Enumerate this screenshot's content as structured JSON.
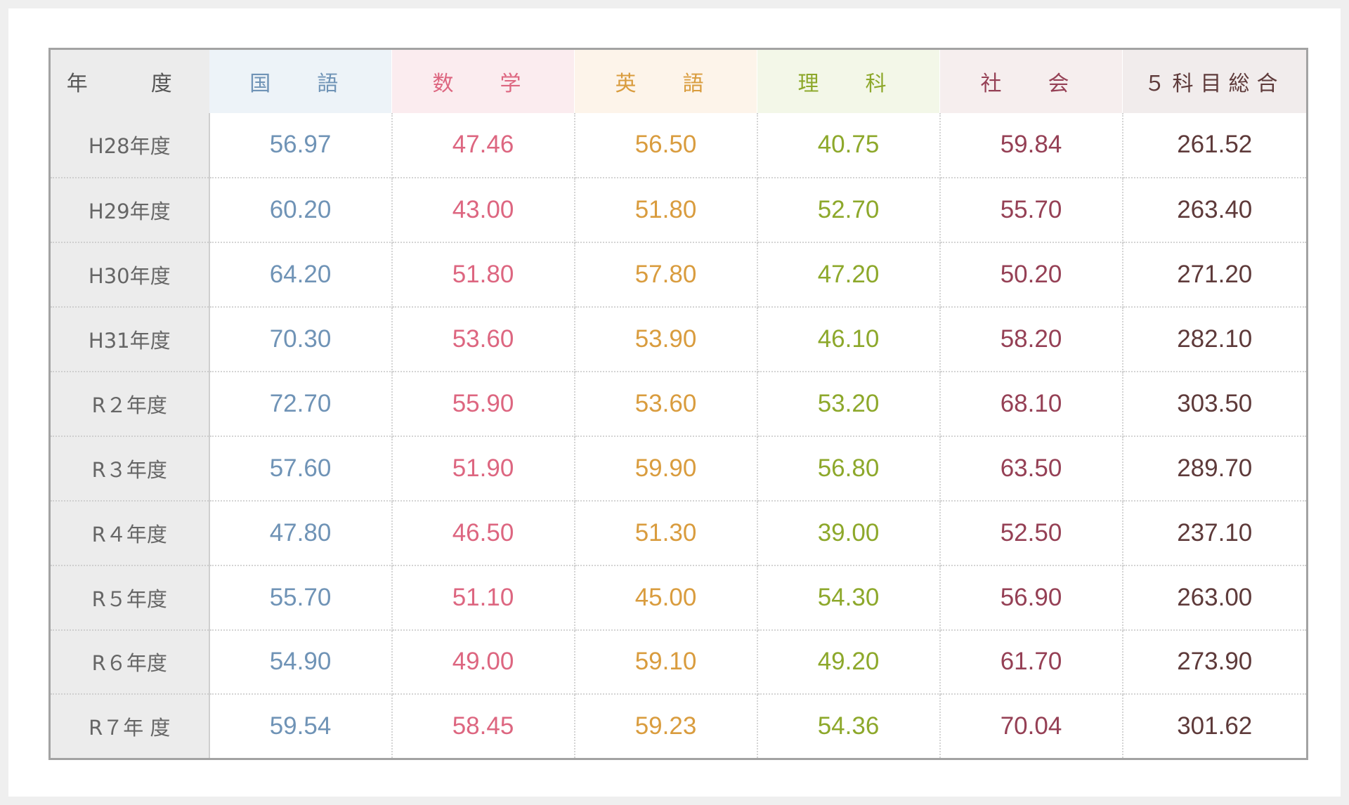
{
  "table": {
    "headers": {
      "year": "年　度",
      "kokugo": "国　語",
      "sugaku": "数　学",
      "eigo": "英　語",
      "rika": "理　科",
      "shakai": "社　会",
      "total": "５科目総合"
    },
    "rows": [
      {
        "year": "H28年度",
        "kokugo": "56.97",
        "sugaku": "47.46",
        "eigo": "56.50",
        "rika": "40.75",
        "shakai": "59.84",
        "total": "261.52"
      },
      {
        "year": "H29年度",
        "kokugo": "60.20",
        "sugaku": "43.00",
        "eigo": "51.80",
        "rika": "52.70",
        "shakai": "55.70",
        "total": "263.40"
      },
      {
        "year": "H30年度",
        "kokugo": "64.20",
        "sugaku": "51.80",
        "eigo": "57.80",
        "rika": "47.20",
        "shakai": "50.20",
        "total": "271.20"
      },
      {
        "year": "H31年度",
        "kokugo": "70.30",
        "sugaku": "53.60",
        "eigo": "53.90",
        "rika": "46.10",
        "shakai": "58.20",
        "total": "282.10"
      },
      {
        "year": "R２年度",
        "kokugo": "72.70",
        "sugaku": "55.90",
        "eigo": "53.60",
        "rika": "53.20",
        "shakai": "68.10",
        "total": "303.50"
      },
      {
        "year": "R３年度",
        "kokugo": "57.60",
        "sugaku": "51.90",
        "eigo": "59.90",
        "rika": "56.80",
        "shakai": "63.50",
        "total": "289.70"
      },
      {
        "year": "R４年度",
        "kokugo": "47.80",
        "sugaku": "46.50",
        "eigo": "51.30",
        "rika": "39.00",
        "shakai": "52.50",
        "total": "237.10"
      },
      {
        "year": "R５年度",
        "kokugo": "55.70",
        "sugaku": "51.10",
        "eigo": "45.00",
        "rika": "54.30",
        "shakai": "56.90",
        "total": "263.00"
      },
      {
        "year": "R６年度",
        "kokugo": "54.90",
        "sugaku": "49.00",
        "eigo": "59.10",
        "rika": "49.20",
        "shakai": "61.70",
        "total": "273.90"
      },
      {
        "year": "R７年 度",
        "kokugo": "59.54",
        "sugaku": "58.45",
        "eigo": "59.23",
        "rika": "54.36",
        "shakai": "70.04",
        "total": "301.62"
      }
    ]
  },
  "colors": {
    "kokugo": "#6f93b6",
    "sugaku": "#dd6680",
    "eigo": "#d99c3e",
    "rika": "#8da82b",
    "shakai": "#954055",
    "total": "#5e3a3a",
    "border": "#a3a3a3"
  }
}
